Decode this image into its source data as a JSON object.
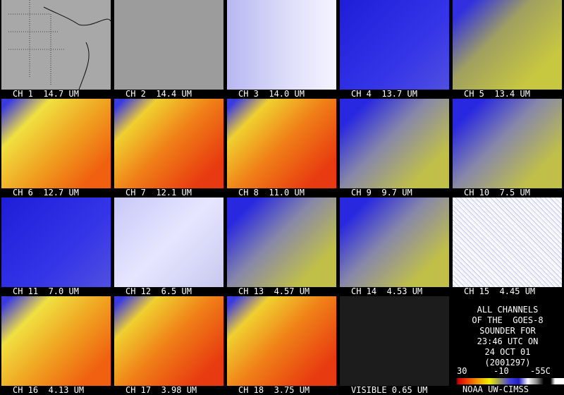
{
  "tiles": [
    "CH 1  14.7 UM",
    "CH 2  14.4 UM",
    "CH 3  14.0 UM",
    "CH 4  13.7 UM",
    "CH 5  13.4 UM",
    "CH 6  12.7 UM",
    "CH 7  12.1 UM",
    "CH 8  11.0 UM",
    "CH 9  9.7 UM",
    "CH 10  7.5 UM",
    "CH 11  7.0 UM",
    "CH 12  6.5 UM",
    "CH 13  4.57 UM",
    "CH 14  4.53 UM",
    "CH 15  4.45 UM",
    "CH 16  4.13 UM",
    "CH 17  3.98 UM",
    "CH 18  3.75 UM",
    "VISIBLE 0.65 UM"
  ],
  "info": {
    "lines": [
      "ALL CHANNELS",
      "OF THE  GOES-8",
      "SOUNDER FOR",
      "23:46 UTC ON",
      "24 OCT 01",
      "(2001297)"
    ]
  },
  "colorbar": {
    "labels": [
      "30",
      "-10",
      "-55C"
    ]
  },
  "credit": "NOAA UW-CIMSS"
}
